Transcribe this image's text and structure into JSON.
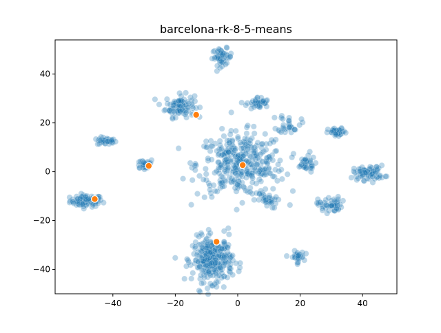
{
  "chart_data": {
    "type": "scatter",
    "title": "barcelona-rk-8-5-means",
    "xlabel": "",
    "ylabel": "",
    "xlim": [
      -58.5,
      51
    ],
    "ylim": [
      -50,
      54
    ],
    "xticks": [
      -40,
      -20,
      0,
      20,
      40
    ],
    "yticks": [
      -40,
      -20,
      0,
      20,
      40
    ],
    "grid": false,
    "legend": "none",
    "colors": {
      "points": "#1f77b4",
      "centroids": "#ff7f0e",
      "edge": "#ffffff"
    },
    "clusters": [
      {
        "cx": -48.5,
        "cy": -12.0,
        "sx": 2.6,
        "sy": 1.2,
        "n": 90
      },
      {
        "cx": -42.0,
        "cy": 12.5,
        "sx": 1.5,
        "sy": 0.8,
        "n": 35
      },
      {
        "cx": -30.0,
        "cy": 3.0,
        "sx": 1.6,
        "sy": 1.2,
        "n": 30
      },
      {
        "cx": -18.5,
        "cy": 27.0,
        "sx": 2.3,
        "sy": 2.3,
        "n": 95
      },
      {
        "cx": -5.0,
        "cy": 47.0,
        "sx": 1.6,
        "sy": 1.7,
        "n": 50
      },
      {
        "cx": 1.0,
        "cy": 3.0,
        "sx": 7.0,
        "sy": 6.5,
        "n": 360
      },
      {
        "cx": 6.5,
        "cy": 28.0,
        "sx": 1.8,
        "sy": 1.3,
        "n": 40
      },
      {
        "cx": 16.5,
        "cy": 20.0,
        "sx": 1.8,
        "sy": 2.0,
        "n": 30
      },
      {
        "cx": 21.5,
        "cy": 3.0,
        "sx": 1.7,
        "sy": 1.6,
        "n": 35
      },
      {
        "cx": 9.5,
        "cy": -12.0,
        "sx": 1.5,
        "sy": 1.5,
        "n": 30
      },
      {
        "cx": 29.5,
        "cy": -13.5,
        "sx": 1.9,
        "sy": 1.6,
        "n": 50
      },
      {
        "cx": 32.0,
        "cy": 16.0,
        "sx": 1.5,
        "sy": 0.9,
        "n": 40
      },
      {
        "cx": 42.0,
        "cy": -0.5,
        "sx": 2.5,
        "sy": 1.5,
        "n": 75
      },
      {
        "cx": 19.0,
        "cy": -35.0,
        "sx": 1.1,
        "sy": 1.2,
        "n": 30
      },
      {
        "cx": -8.0,
        "cy": -36.0,
        "sx": 3.2,
        "sy": 4.5,
        "n": 300
      }
    ],
    "centroids": [
      {
        "x": -45.8,
        "y": -11.2
      },
      {
        "x": -28.5,
        "y": 2.4
      },
      {
        "x": -13.3,
        "y": 23.3
      },
      {
        "x": 1.6,
        "y": 2.7
      },
      {
        "x": -6.8,
        "y": -28.7
      }
    ]
  }
}
